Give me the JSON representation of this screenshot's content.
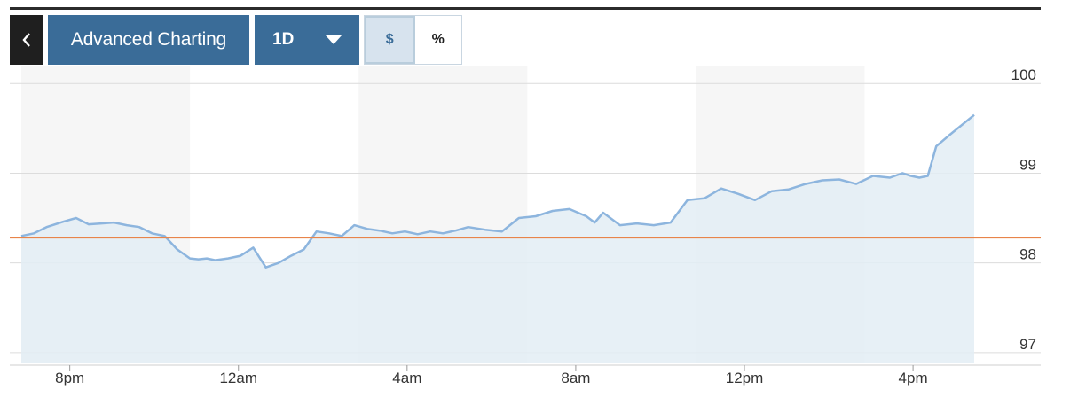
{
  "toolbar": {
    "back_icon": "chevron-left-icon",
    "advanced_label": "Advanced Charting",
    "range_value": "1D",
    "range_icon": "caret-down-icon",
    "units": [
      {
        "label": "$",
        "active": true
      },
      {
        "label": "%",
        "active": false
      }
    ]
  },
  "colors": {
    "button_bg": "#3a6c98",
    "line": "#8db5de",
    "area": "#e3edf4",
    "reference_line": "#e8844a",
    "shade": "#f6f6f6"
  },
  "chart_data": {
    "type": "area",
    "title": "",
    "xlabel": "",
    "ylabel": "",
    "x_ticks": [
      "8pm",
      "12am",
      "4am",
      "8am",
      "12pm",
      "4pm"
    ],
    "y_ticks": [
      100,
      99,
      98,
      97
    ],
    "ylim": [
      96.88,
      100.2
    ],
    "x_range_hours": [
      0,
      22.6
    ],
    "y_axis_position": "right",
    "grid": "horizontal",
    "shaded_bands_hours": [
      [
        0,
        4
      ],
      [
        8,
        12
      ],
      [
        16,
        20
      ]
    ],
    "reference_value": 98.28,
    "series": [
      {
        "x": [
          0,
          0.3,
          0.6,
          1,
          1.3,
          1.6,
          1.9,
          2.2,
          2.5,
          2.8,
          3.1,
          3.4,
          3.7,
          4.0,
          4.2,
          4.4,
          4.6,
          4.9,
          5.2,
          5.5,
          5.8,
          6.1,
          6.4,
          6.7,
          7.0,
          7.3,
          7.6,
          7.9,
          8.2,
          8.5,
          8.8,
          9.1,
          9.4,
          9.7,
          10.0,
          10.3,
          10.6,
          11.0,
          11.4,
          11.8,
          12.2,
          12.6,
          13.0,
          13.4,
          13.6,
          13.8,
          14.2,
          14.6,
          15.0,
          15.4,
          15.8,
          16.2,
          16.6,
          17.0,
          17.4,
          17.8,
          18.2,
          18.6,
          19.0,
          19.4,
          19.8,
          20.2,
          20.6,
          20.9,
          21.1,
          21.3,
          21.5,
          21.7,
          22.0,
          22.6
        ],
        "values": [
          98.3,
          98.33,
          98.4,
          98.46,
          98.5,
          98.43,
          98.44,
          98.45,
          98.42,
          98.4,
          98.33,
          98.3,
          98.15,
          98.05,
          98.04,
          98.05,
          98.03,
          98.05,
          98.08,
          98.17,
          97.95,
          98.0,
          98.08,
          98.15,
          98.35,
          98.33,
          98.3,
          98.42,
          98.38,
          98.36,
          98.33,
          98.35,
          98.32,
          98.35,
          98.33,
          98.36,
          98.4,
          98.37,
          98.35,
          98.5,
          98.52,
          98.58,
          98.6,
          98.52,
          98.45,
          98.56,
          98.42,
          98.44,
          98.42,
          98.45,
          98.7,
          98.72,
          98.83,
          98.77,
          98.7,
          98.8,
          98.82,
          98.88,
          98.92,
          98.93,
          98.88,
          98.97,
          98.95,
          99.0,
          98.97,
          98.95,
          98.97,
          99.3,
          99.42,
          99.65
        ]
      }
    ]
  }
}
